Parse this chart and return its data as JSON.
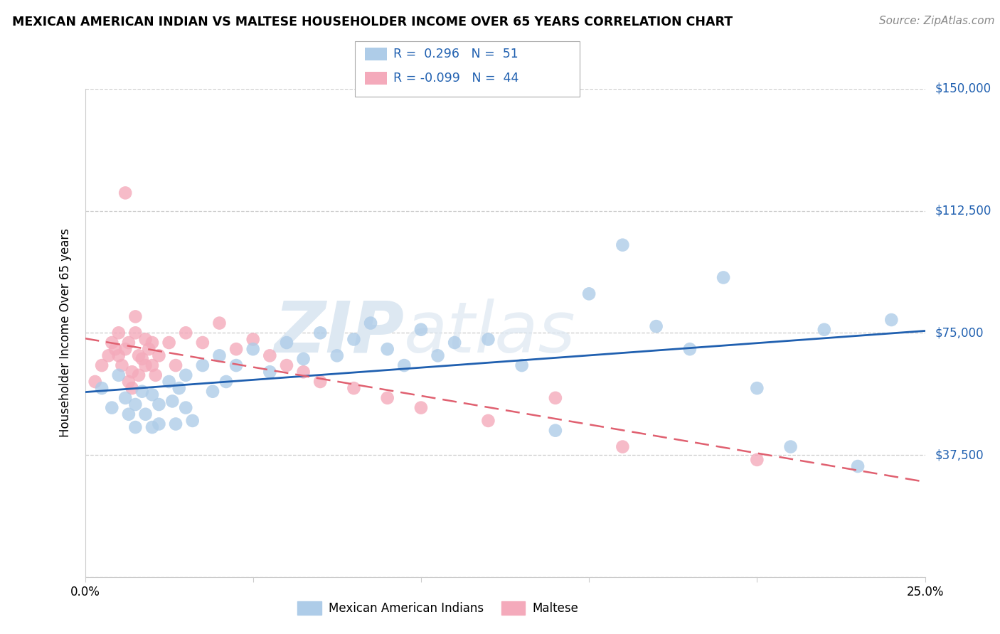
{
  "title": "MEXICAN AMERICAN INDIAN VS MALTESE HOUSEHOLDER INCOME OVER 65 YEARS CORRELATION CHART",
  "source": "Source: ZipAtlas.com",
  "ylabel": "Householder Income Over 65 years",
  "xlim": [
    0,
    0.25
  ],
  "ylim": [
    0,
    150000
  ],
  "xtick_vals": [
    0.0,
    0.05,
    0.1,
    0.15,
    0.2,
    0.25
  ],
  "xtick_labels": [
    "0.0%",
    "",
    "",
    "",
    "",
    "25.0%"
  ],
  "ytick_vals": [
    0,
    37500,
    75000,
    112500,
    150000
  ],
  "ytick_labels_right": [
    "",
    "$37,500",
    "$75,000",
    "$112,500",
    "$150,000"
  ],
  "legend1_label": "Mexican American Indians",
  "legend2_label": "Maltese",
  "r_blue": "0.296",
  "n_blue": "51",
  "r_pink": "-0.099",
  "n_pink": "44",
  "blue_dot_color": "#aecce8",
  "pink_dot_color": "#f4aabb",
  "blue_line_color": "#2060b0",
  "pink_line_color": "#e06070",
  "watermark_color": "#dde8f2",
  "grid_color": "#cccccc",
  "blue_x": [
    0.005,
    0.008,
    0.01,
    0.012,
    0.013,
    0.015,
    0.015,
    0.017,
    0.018,
    0.02,
    0.02,
    0.022,
    0.022,
    0.025,
    0.026,
    0.027,
    0.028,
    0.03,
    0.03,
    0.032,
    0.035,
    0.038,
    0.04,
    0.042,
    0.045,
    0.05,
    0.055,
    0.06,
    0.065,
    0.07,
    0.075,
    0.08,
    0.085,
    0.09,
    0.095,
    0.1,
    0.105,
    0.11,
    0.12,
    0.13,
    0.14,
    0.15,
    0.16,
    0.17,
    0.18,
    0.19,
    0.2,
    0.21,
    0.22,
    0.23,
    0.24
  ],
  "blue_y": [
    58000,
    52000,
    62000,
    55000,
    50000,
    53000,
    46000,
    57000,
    50000,
    56000,
    46000,
    53000,
    47000,
    60000,
    54000,
    47000,
    58000,
    62000,
    52000,
    48000,
    65000,
    57000,
    68000,
    60000,
    65000,
    70000,
    63000,
    72000,
    67000,
    75000,
    68000,
    73000,
    78000,
    70000,
    65000,
    76000,
    68000,
    72000,
    73000,
    65000,
    45000,
    87000,
    102000,
    77000,
    70000,
    92000,
    58000,
    40000,
    76000,
    34000,
    79000
  ],
  "pink_x": [
    0.003,
    0.005,
    0.007,
    0.008,
    0.009,
    0.01,
    0.01,
    0.011,
    0.012,
    0.012,
    0.013,
    0.013,
    0.014,
    0.014,
    0.015,
    0.015,
    0.016,
    0.016,
    0.017,
    0.018,
    0.018,
    0.019,
    0.02,
    0.02,
    0.021,
    0.022,
    0.025,
    0.027,
    0.03,
    0.035,
    0.04,
    0.045,
    0.05,
    0.055,
    0.06,
    0.065,
    0.07,
    0.08,
    0.09,
    0.1,
    0.12,
    0.14,
    0.16,
    0.2
  ],
  "pink_y": [
    60000,
    65000,
    68000,
    72000,
    70000,
    68000,
    75000,
    65000,
    70000,
    118000,
    60000,
    72000,
    63000,
    58000,
    75000,
    80000,
    68000,
    62000,
    67000,
    65000,
    73000,
    70000,
    65000,
    72000,
    62000,
    68000,
    72000,
    65000,
    75000,
    72000,
    78000,
    70000,
    73000,
    68000,
    65000,
    63000,
    60000,
    58000,
    55000,
    52000,
    48000,
    55000,
    40000,
    36000
  ]
}
